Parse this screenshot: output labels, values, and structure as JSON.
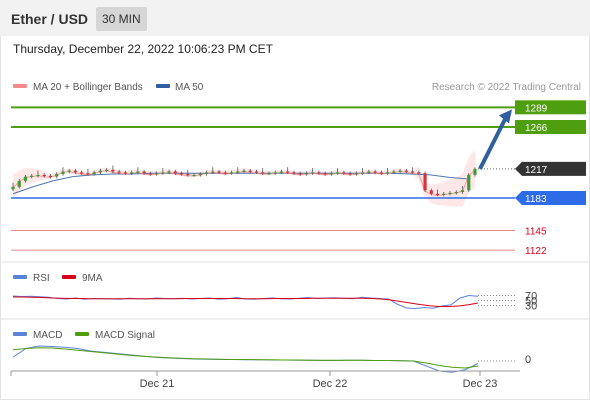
{
  "header": {
    "title": "Ether / USD",
    "timeframe": "30 MIN"
  },
  "datetime": "Thursday, December 22, 2022 10:06:23 PM CET",
  "legend": {
    "bollinger": "MA 20 + Bollinger Bands",
    "ma50": "MA 50",
    "credit": "Research © 2022 Trading Central",
    "rsi": "RSI",
    "rsi_ma": "9MA",
    "macd": "MACD",
    "macd_signal": "MACD Signal"
  },
  "colors": {
    "resistance": "#4f9e0f",
    "support": "#2e6be6",
    "target_red": "#d9001b",
    "current": "#333333",
    "arrow": "#2f5f9e",
    "bollinger": "#f28a8a",
    "ma50": "#2f5fa0",
    "rsi": "#5b84d8",
    "rsi_ma": "#d9001b",
    "macd": "#5b84d8",
    "macd_signal": "#4f9e0f"
  },
  "chart_data": [
    {
      "type": "candlestick",
      "title": "Ether / USD",
      "x_ticks": [
        "Dec 21",
        "Dec 22",
        "Dec 23"
      ],
      "levels": [
        {
          "label": "1289",
          "value": 1289,
          "kind": "resistance"
        },
        {
          "label": "1266",
          "value": 1266,
          "kind": "resistance"
        },
        {
          "label": "1217",
          "value": 1217,
          "kind": "current"
        },
        {
          "label": "1183",
          "value": 1183,
          "kind": "support"
        },
        {
          "label": "1145",
          "value": 1145,
          "kind": "target"
        },
        {
          "label": "1122",
          "value": 1122,
          "kind": "target"
        }
      ],
      "series": [
        {
          "name": "Ether / USD",
          "values": [
            1196,
            1203,
            1208,
            1209,
            1210,
            1209,
            1208,
            1211,
            1214,
            1215,
            1213,
            1212,
            1211,
            1213,
            1215,
            1216,
            1214,
            1213,
            1212,
            1213,
            1214,
            1212,
            1211,
            1212,
            1213,
            1214,
            1212,
            1211,
            1210,
            1210,
            1211,
            1213,
            1214,
            1213,
            1212,
            1213,
            1214,
            1215,
            1214,
            1213,
            1212,
            1212,
            1213,
            1214,
            1213,
            1212,
            1211,
            1212,
            1213,
            1212,
            1211,
            1212,
            1213,
            1212,
            1211,
            1212,
            1213,
            1214,
            1213,
            1212,
            1213,
            1214,
            1215,
            1214,
            1213,
            1212,
            1192,
            1188,
            1187,
            1188,
            1189,
            1190,
            1192,
            1210,
            1217
          ]
        },
        {
          "name": "MA 50",
          "values": [
            1188,
            1196,
            1203,
            1208,
            1210,
            1211,
            1211,
            1212,
            1212,
            1212,
            1212,
            1212,
            1212,
            1212,
            1212,
            1212,
            1212,
            1212,
            1212,
            1212,
            1211,
            1210,
            1207,
            1205
          ]
        }
      ],
      "forecast": {
        "from": 1217,
        "to": 1289
      }
    },
    {
      "type": "line",
      "title": "RSI",
      "ylim": [
        0,
        100
      ],
      "y_ticks": [
        30,
        50,
        70
      ],
      "series": [
        {
          "name": "RSI",
          "values": [
            68,
            66,
            67,
            65,
            63,
            58,
            56,
            60,
            55,
            58,
            57,
            56,
            55,
            59,
            57,
            56,
            60,
            58,
            57,
            59,
            56,
            58,
            60,
            55,
            57,
            62,
            56,
            55,
            58,
            60,
            57,
            56,
            59,
            62,
            58,
            60,
            61,
            59,
            57,
            63,
            60,
            58,
            56,
            35,
            20,
            18,
            22,
            19,
            28,
            33,
            60,
            70,
            67
          ]
        },
        {
          "name": "9MA",
          "values": [
            64,
            64,
            63,
            62,
            60,
            59,
            58,
            58,
            57,
            57,
            57,
            57,
            57,
            57,
            57,
            57,
            57,
            57,
            58,
            58,
            58,
            58,
            58,
            58,
            57,
            57,
            57,
            58,
            58,
            58,
            58,
            59,
            59,
            59,
            59,
            59,
            59,
            58,
            56,
            52,
            46,
            40,
            34,
            29,
            26,
            26,
            28,
            33,
            40
          ]
        }
      ]
    },
    {
      "type": "line",
      "title": "MACD",
      "y_ticks": [
        0
      ],
      "series": [
        {
          "name": "MACD",
          "values": [
            1.5,
            5.0,
            6.0,
            5.8,
            5.5,
            5.0,
            4.0,
            3.5,
            3.0,
            2.5,
            2.0,
            1.5,
            1.2,
            1.0,
            0.8,
            0.7,
            0.6,
            0.6,
            0.5,
            0.5,
            0.4,
            0.4,
            0.3,
            0.3,
            0.2,
            0.2,
            0.3,
            0.3,
            0.2,
            0.2,
            0.1,
            0.0,
            -2.0,
            -4.0,
            -4.5,
            -3.5,
            -1.0
          ]
        },
        {
          "name": "MACD Signal",
          "values": [
            4.5,
            5.0,
            5.3,
            5.2,
            4.8,
            4.3,
            3.8,
            3.3,
            2.8,
            2.3,
            1.9,
            1.6,
            1.3,
            1.1,
            0.9,
            0.8,
            0.7,
            0.6,
            0.6,
            0.5,
            0.5,
            0.4,
            0.4,
            0.3,
            0.3,
            0.3,
            0.3,
            0.3,
            0.2,
            0.2,
            0.1,
            0.0,
            -0.8,
            -1.8,
            -2.5,
            -2.8,
            -2.0
          ]
        }
      ]
    }
  ]
}
